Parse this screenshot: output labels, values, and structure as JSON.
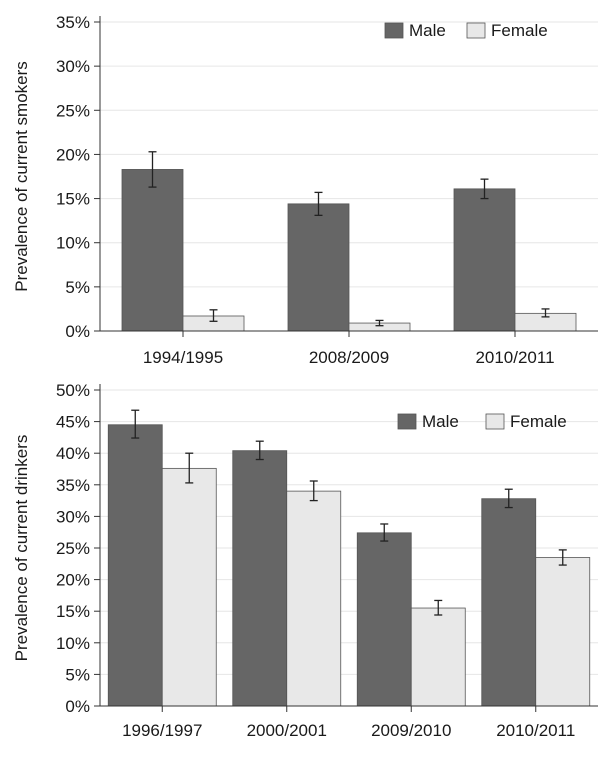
{
  "colors": {
    "male": "#666666",
    "female": "#e8e8e8",
    "bar_stroke": "#555555"
  },
  "chart_data": [
    {
      "type": "bar",
      "title": "",
      "xlabel": "",
      "ylabel": "Prevalence of current smokers",
      "categories": [
        "1994/1995",
        "2008/2009",
        "2010/2011"
      ],
      "ylim": [
        0,
        35
      ],
      "yticks": [
        0,
        5,
        10,
        15,
        20,
        25,
        30,
        35
      ],
      "ytick_labels": [
        "0%",
        "5%",
        "10%",
        "15%",
        "20%",
        "25%",
        "30%",
        "35%"
      ],
      "grid": true,
      "legend": "top-right",
      "series": [
        {
          "name": "Male",
          "color_key": "male",
          "values": [
            18.3,
            14.4,
            16.1
          ],
          "err_low": [
            16.3,
            13.1,
            15.0
          ],
          "err_high": [
            20.3,
            15.7,
            17.2
          ]
        },
        {
          "name": "Female",
          "color_key": "female",
          "values": [
            1.7,
            0.9,
            2.0
          ],
          "err_low": [
            1.1,
            0.6,
            1.6
          ],
          "err_high": [
            2.4,
            1.2,
            2.5
          ]
        }
      ]
    },
    {
      "type": "bar",
      "title": "",
      "xlabel": "",
      "ylabel": "Prevalence of current drinkers",
      "categories": [
        "1996/1997",
        "2000/2001",
        "2009/2010",
        "2010/2011"
      ],
      "ylim": [
        0,
        50
      ],
      "yticks": [
        0,
        5,
        10,
        15,
        20,
        25,
        30,
        35,
        40,
        45,
        50
      ],
      "ytick_labels": [
        "0%",
        "5%",
        "10%",
        "15%",
        "20%",
        "25%",
        "30%",
        "35%",
        "40%",
        "45%",
        "50%"
      ],
      "grid": true,
      "legend": "top-right",
      "series": [
        {
          "name": "Male",
          "color_key": "male",
          "values": [
            44.5,
            40.4,
            27.4,
            32.8
          ],
          "err_low": [
            42.4,
            39.0,
            26.1,
            31.4
          ],
          "err_high": [
            46.8,
            41.9,
            28.8,
            34.3
          ]
        },
        {
          "name": "Female",
          "color_key": "female",
          "values": [
            37.6,
            34.0,
            15.5,
            23.5
          ],
          "err_low": [
            35.3,
            32.5,
            14.4,
            22.3
          ],
          "err_high": [
            40.0,
            35.6,
            16.7,
            24.7
          ]
        }
      ]
    }
  ]
}
